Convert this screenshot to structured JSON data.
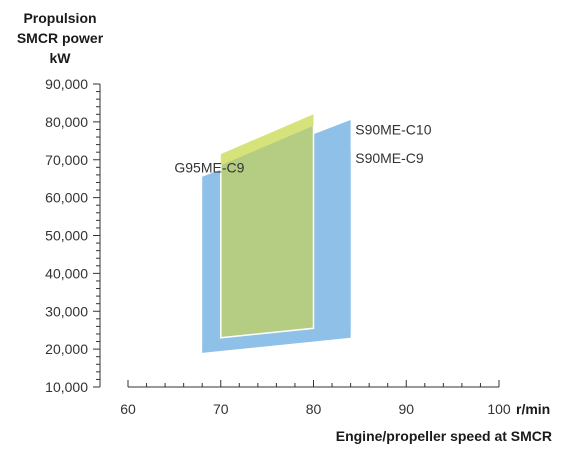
{
  "chart_data": {
    "type": "area",
    "ylabel": [
      "Propulsion",
      "SMCR power",
      "kW"
    ],
    "xlabel": "Engine/propeller speed at SMCR",
    "x_unit": "r/min",
    "xlim": [
      60,
      100
    ],
    "ylim": [
      10000,
      90000
    ],
    "x_ticks": [
      60,
      70,
      80,
      90,
      100
    ],
    "y_ticks": [
      "10,000",
      "20,000",
      "30,000",
      "40,000",
      "50,000",
      "60,000",
      "70,000",
      "80,000",
      "90,000"
    ],
    "y_tick_values": [
      10000,
      20000,
      30000,
      40000,
      50000,
      60000,
      70000,
      80000,
      90000
    ],
    "grid": false,
    "series": [
      {
        "name": "S90ME-C9",
        "color": "#5b9fd6",
        "polygon": [
          [
            72,
            21000
          ],
          [
            84,
            24000
          ],
          [
            84,
            72500
          ],
          [
            72,
            62500
          ]
        ]
      },
      {
        "name": "S90ME-C10",
        "color": "#8ec0e8",
        "polygon": [
          [
            68,
            19000
          ],
          [
            84,
            23000
          ],
          [
            84,
            80500
          ],
          [
            68,
            65500
          ]
        ]
      },
      {
        "name": "G95ME-C9",
        "color": "#b5cd83",
        "border": "#ffffff",
        "polygon": [
          [
            70,
            23000
          ],
          [
            80,
            25500
          ],
          [
            80,
            82000
          ],
          [
            70,
            71500
          ]
        ]
      },
      {
        "name": "",
        "color": "#d6e27a",
        "polygon": [
          [
            70,
            71500
          ],
          [
            80,
            82000
          ],
          [
            80,
            79000
          ],
          [
            70,
            68500
          ]
        ]
      }
    ],
    "annotations": [
      {
        "text": "G95ME-C9",
        "x": 65,
        "y": 68000,
        "anchor": "start"
      },
      {
        "text": "S90ME-C10",
        "x": 84.5,
        "y": 78000,
        "anchor": "start"
      },
      {
        "text": "S90ME-C9",
        "x": 84.5,
        "y": 70500,
        "anchor": "start"
      }
    ]
  }
}
